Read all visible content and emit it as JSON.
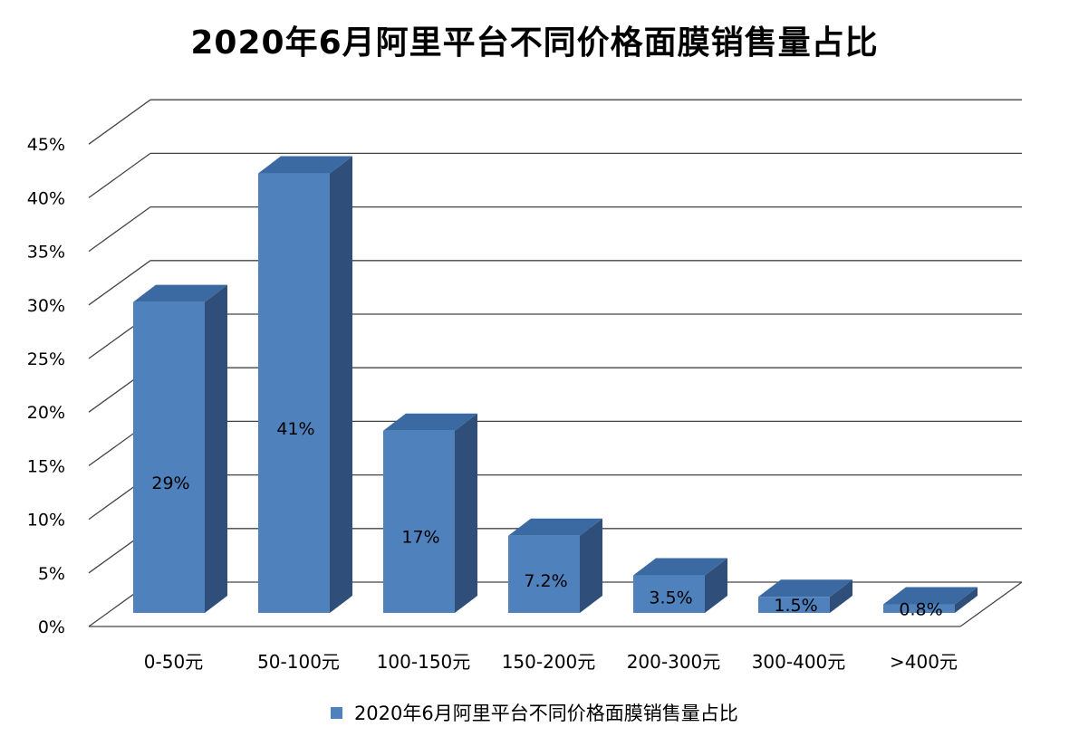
{
  "chart_data": {
    "type": "bar",
    "title": "2020年6月阿里平台不同价格面膜销售量占比",
    "categories": [
      "0-50元",
      "50-100元",
      "100-150元",
      "150-200元",
      "200-300元",
      "300-400元",
      ">400元"
    ],
    "series": [
      {
        "name": "2020年6月阿里平台不同价格面膜销售量占比",
        "values": [
          29,
          41,
          17,
          7.2,
          3.5,
          1.5,
          0.8
        ],
        "labels": [
          "29%",
          "41%",
          "17%",
          "7.2%",
          "3.5%",
          "1.5%",
          "0.8%"
        ]
      }
    ],
    "ylim": [
      0,
      45
    ],
    "y_ticks": [
      "0%",
      "5%",
      "10%",
      "15%",
      "20%",
      "25%",
      "30%",
      "35%",
      "40%",
      "45%"
    ],
    "grid": true,
    "legend_position": "bottom",
    "three_d": true,
    "colors": {
      "bar_front": "#4f81bd",
      "bar_top": "#3b6aa3",
      "bar_side": "#2f4f7a",
      "grid": "#444444"
    }
  }
}
